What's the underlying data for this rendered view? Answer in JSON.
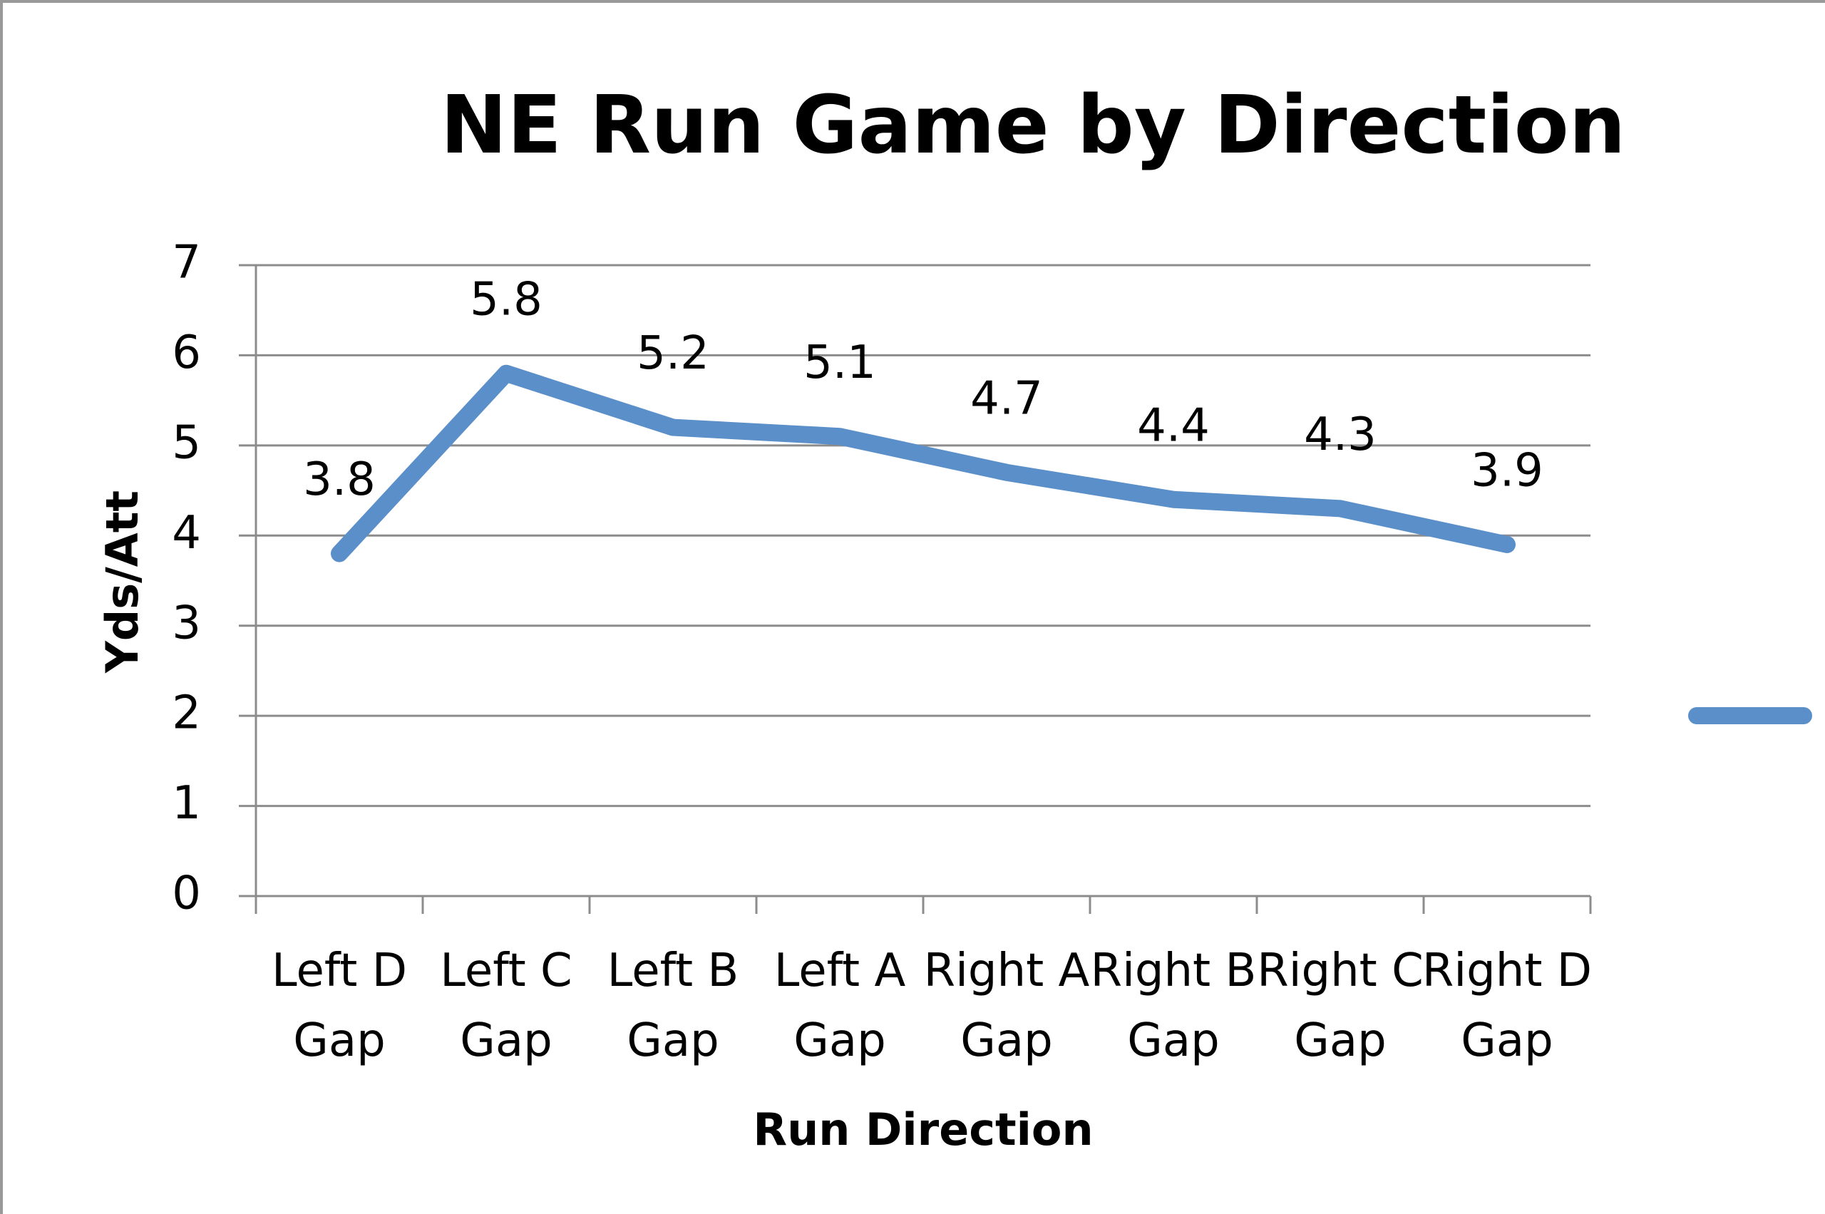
{
  "chart_data": {
    "type": "line",
    "title": "NE Run Game by Direction",
    "x_label": "Run Direction",
    "y_label": "Yds/Att",
    "categories": [
      "Left D Gap",
      "Left C Gap",
      "Left B Gap",
      "Left A Gap",
      "Right A Gap",
      "Right B Gap",
      "Right C Gap",
      "Right D Gap"
    ],
    "series": [
      {
        "color": "#5b8fc9",
        "values": [
          3.8,
          5.8,
          5.2,
          5.1,
          4.7,
          4.4,
          4.3,
          3.9
        ]
      }
    ],
    "ylim": [
      0,
      7
    ],
    "yticks": [
      0,
      1,
      2,
      3,
      4,
      5,
      6,
      7
    ],
    "grid": true
  }
}
